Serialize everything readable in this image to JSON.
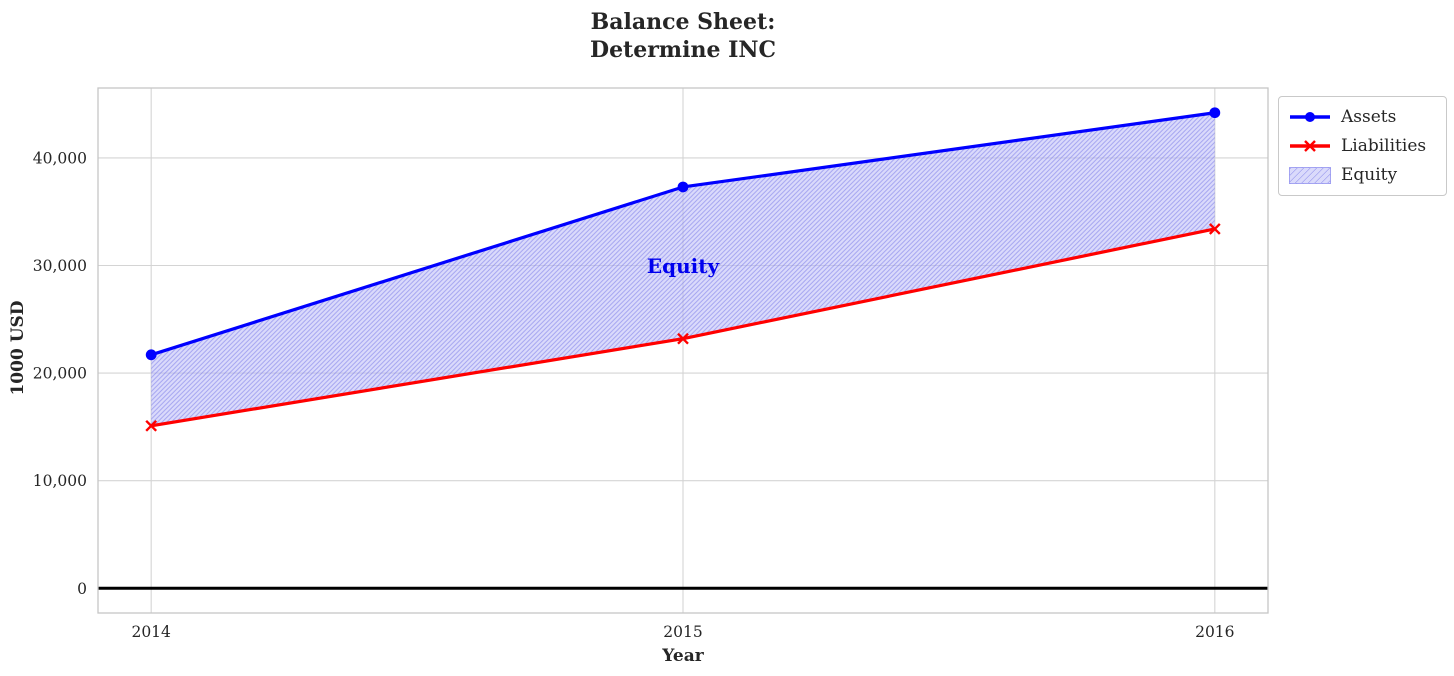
{
  "chart_data": {
    "type": "line",
    "title": "Balance Sheet:\nDetermine INC",
    "title_lines": [
      "Balance Sheet:",
      "Determine INC"
    ],
    "xlabel": "Year",
    "ylabel": "1000 USD",
    "x": [
      2014,
      2015,
      2016
    ],
    "x_tick_labels": [
      "2014",
      "2015",
      "2016"
    ],
    "yticks": [
      0,
      10000,
      20000,
      30000,
      40000
    ],
    "ytick_labels": [
      "0",
      "10,000",
      "20,000",
      "30,000",
      "40,000"
    ],
    "xlim": [
      2013.9,
      2016.1
    ],
    "ylim": [
      -2300,
      46500
    ],
    "grid": true,
    "zero_line": {
      "y": 0,
      "color": "#000000"
    },
    "series": [
      {
        "name": "Assets",
        "type": "line",
        "marker": "circle",
        "color": "#0000ff",
        "values": [
          21700,
          37300,
          44200
        ]
      },
      {
        "name": "Liabilities",
        "type": "line",
        "marker": "x",
        "color": "#ff0000",
        "values": [
          15100,
          23200,
          33400
        ]
      },
      {
        "name": "Equity",
        "type": "area_between",
        "upper": "Assets",
        "lower": "Liabilities",
        "facecolor": "rgba(188,188,248,0.55)",
        "hatch": "//",
        "hatch_color": "rgba(110,110,230,0.5)",
        "values": [
          6600,
          14100,
          10800
        ]
      }
    ],
    "annotation": {
      "text": "Equity",
      "x": 2015,
      "y": 30000,
      "color": "#0000ee"
    },
    "legend": {
      "position": "top-right-outside",
      "entries": [
        "Assets",
        "Liabilities",
        "Equity"
      ]
    }
  },
  "style_colors": {
    "text": "#262626",
    "grid": "#d4d4d4",
    "frame": "#c6c6c6",
    "background": "#ffffff"
  }
}
